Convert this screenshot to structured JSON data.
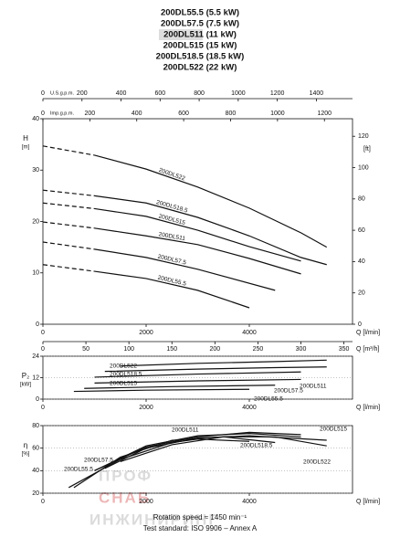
{
  "header": {
    "models": [
      "200DL55.5 (5.5 kW)",
      "200DL57.5 (7.5 kW)",
      "200DL511 (11 kW)",
      "200DL515 (15 kW)",
      "200DL518.5 (18.5 kW)",
      "200DL522 (22 kW)"
    ],
    "highlight_index": 2
  },
  "chart_data": [
    {
      "type": "line",
      "ylabel": "H",
      "yunit": "[m]",
      "xlabel": "Q [l/min]",
      "xlim": [
        0,
        6000
      ],
      "xticks": [
        0,
        2000,
        4000
      ],
      "ylim": [
        0,
        40
      ],
      "yticks": [
        0,
        10,
        20,
        30,
        40
      ],
      "grid": false,
      "secondary_axes": [
        {
          "position": "top",
          "label": "U.S.g.p.m.",
          "lim": [
            0,
            1585.2
          ],
          "ticks": [
            0,
            200,
            400,
            600,
            800,
            1000,
            1200,
            1400
          ]
        },
        {
          "position": "top",
          "label": "Imp.g.p.m.",
          "lim": [
            0,
            1319.8
          ],
          "ticks": [
            0,
            200,
            400,
            600,
            800,
            1000,
            1200
          ]
        },
        {
          "position": "right",
          "label": "[ft]",
          "lim": [
            0,
            131.2
          ],
          "ticks": [
            0,
            20,
            40,
            60,
            80,
            100,
            120
          ]
        },
        {
          "position": "bottom",
          "label": "Q [m³/h]",
          "lim": [
            0,
            360
          ],
          "ticks": [
            0,
            50,
            100,
            150,
            200,
            250,
            300,
            350
          ]
        }
      ],
      "series": [
        {
          "name": "200DL522",
          "color": "#111",
          "dashed_until": 1000,
          "x": [
            0,
            1000,
            2000,
            3000,
            4000,
            5000,
            5500
          ],
          "values": [
            34.7,
            32.9,
            30.2,
            26.7,
            22.6,
            17.8,
            15
          ]
        },
        {
          "name": "200DL518.5",
          "color": "#111",
          "dashed_until": 1000,
          "x": [
            0,
            1000,
            2000,
            3000,
            4000,
            5000,
            5500
          ],
          "values": [
            26.1,
            25,
            23.6,
            20.8,
            17.2,
            13,
            11.6
          ]
        },
        {
          "name": "200DL515",
          "color": "#111",
          "dashed_until": 1000,
          "x": [
            0,
            1000,
            2000,
            3000,
            4000,
            5000
          ],
          "values": [
            23.6,
            22.5,
            21,
            18.3,
            15.1,
            12.3
          ]
        },
        {
          "name": "200DL511",
          "color": "#111",
          "dashed_until": 1000,
          "x": [
            0,
            1000,
            2000,
            3000,
            4000,
            5000
          ],
          "values": [
            19.9,
            18.7,
            17.2,
            15.5,
            12.8,
            9.8
          ]
        },
        {
          "name": "200DL57.5",
          "color": "#111",
          "dashed_until": 1000,
          "x": [
            0,
            1000,
            2000,
            3000,
            4500
          ],
          "values": [
            16,
            14.6,
            13,
            10.7,
            6.6
          ]
        },
        {
          "name": "200DL55.5",
          "color": "#111",
          "dashed_until": 1000,
          "x": [
            0,
            1000,
            2000,
            3000,
            4000
          ],
          "values": [
            11.6,
            10.3,
            8.9,
            6.6,
            3.2
          ]
        }
      ]
    },
    {
      "type": "line",
      "ylabel": "P₂",
      "yunit": "[kW]",
      "xlabel": "Q [l/min]",
      "xlim": [
        0,
        6000
      ],
      "xticks": [
        0,
        2000,
        4000
      ],
      "ylim": [
        0,
        24
      ],
      "yticks": [
        0,
        12,
        24
      ],
      "grid": true,
      "series": [
        {
          "name": "200DL522",
          "color": "#111",
          "x": [
            1500,
            3000,
            4500,
            5500
          ],
          "values": [
            18.5,
            20,
            21,
            21.8
          ]
        },
        {
          "name": "200DL518.5",
          "color": "#111",
          "x": [
            1200,
            3000,
            4500,
            5500
          ],
          "values": [
            15.5,
            16.8,
            17.6,
            18
          ]
        },
        {
          "name": "200DL515",
          "color": "#111",
          "x": [
            1000,
            3000,
            5000
          ],
          "values": [
            12.3,
            14,
            15.2
          ]
        },
        {
          "name": "200DL511",
          "color": "#111",
          "x": [
            1000,
            3000,
            5000
          ],
          "values": [
            9,
            10.2,
            11
          ]
        },
        {
          "name": "200DL57.5",
          "color": "#111",
          "x": [
            800,
            2500,
            4500
          ],
          "values": [
            6,
            7,
            7.8
          ]
        },
        {
          "name": "200DL55.5",
          "color": "#111",
          "x": [
            600,
            2000,
            4000
          ],
          "values": [
            4.3,
            5,
            5.5
          ]
        }
      ]
    },
    {
      "type": "line",
      "ylabel": "η",
      "yunit": "[%]",
      "xlabel": "Q [l/min]",
      "xlim": [
        0,
        6000
      ],
      "xticks": [
        0,
        2000,
        4000
      ],
      "ylim": [
        20,
        80
      ],
      "yticks": [
        20,
        40,
        60,
        80
      ],
      "grid": true,
      "series": [
        {
          "name": "200DL511",
          "color": "#111",
          "x": [
            1000,
            2000,
            3000,
            4000,
            5000
          ],
          "values": [
            40,
            62,
            71,
            73,
            70
          ]
        },
        {
          "name": "200DL515",
          "color": "#111",
          "x": [
            1000,
            2000,
            3000,
            4000,
            5000
          ],
          "values": [
            40,
            61,
            70,
            74,
            72
          ]
        },
        {
          "name": "200DL518.5",
          "color": "#111",
          "x": [
            1200,
            2000,
            3000,
            4000,
            5500
          ],
          "values": [
            42,
            60,
            69,
            71,
            67
          ]
        },
        {
          "name": "200DL522",
          "color": "#111",
          "x": [
            1500,
            2500,
            3500,
            4500,
            5500
          ],
          "values": [
            48,
            63,
            70,
            70,
            62
          ]
        },
        {
          "name": "200DL57.5",
          "color": "#111",
          "x": [
            600,
            1500,
            2500,
            3500,
            4500
          ],
          "values": [
            25,
            52,
            67,
            70,
            65
          ]
        },
        {
          "name": "200DL55.5",
          "color": "#111",
          "x": [
            500,
            1500,
            2500,
            3000,
            4000
          ],
          "values": [
            25,
            50,
            65,
            68,
            66
          ]
        }
      ]
    }
  ],
  "footer": {
    "speed": "Rotation speed ≈ 1450 min⁻¹",
    "standard": "Test standard: ISO 9906 – Annex A"
  },
  "watermark": [
    "ПРОФ",
    "СНАБ",
    "ИНЖИНИРИНГ"
  ]
}
